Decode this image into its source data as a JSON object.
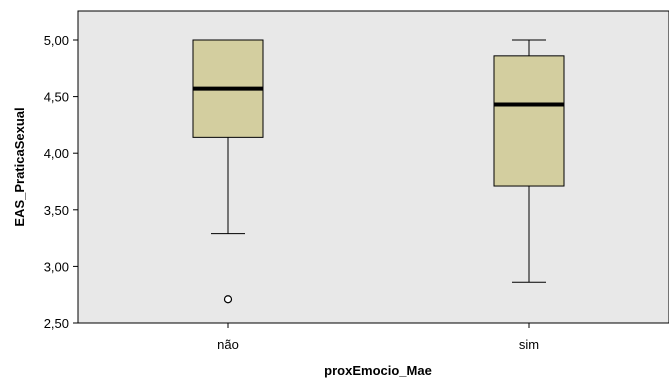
{
  "chart_data": {
    "type": "boxplot",
    "xlabel": "proxEmocio_Mae",
    "ylabel": "EAS_PraticaSexual",
    "ylim": [
      2.5,
      5.0
    ],
    "y_ticks": [
      2.5,
      3.0,
      3.5,
      4.0,
      4.5,
      5.0
    ],
    "y_tick_labels": [
      "2,50",
      "3,00",
      "3,50",
      "4,00",
      "4,50",
      "5,00"
    ],
    "categories": [
      "não",
      "sim"
    ],
    "boxes": [
      {
        "category": "não",
        "whisker_low": 3.29,
        "q1": 4.14,
        "median": 4.57,
        "q3": 5.0,
        "whisker_high": 5.0,
        "outliers": [
          2.71
        ]
      },
      {
        "category": "sim",
        "whisker_low": 2.86,
        "q1": 3.71,
        "median": 4.43,
        "q3": 4.86,
        "whisker_high": 5.0,
        "outliers": []
      }
    ],
    "grid": false,
    "colors": {
      "plot_background": "#e8e8e8",
      "box_fill": "#d3ce9f",
      "line": "#000000"
    }
  }
}
